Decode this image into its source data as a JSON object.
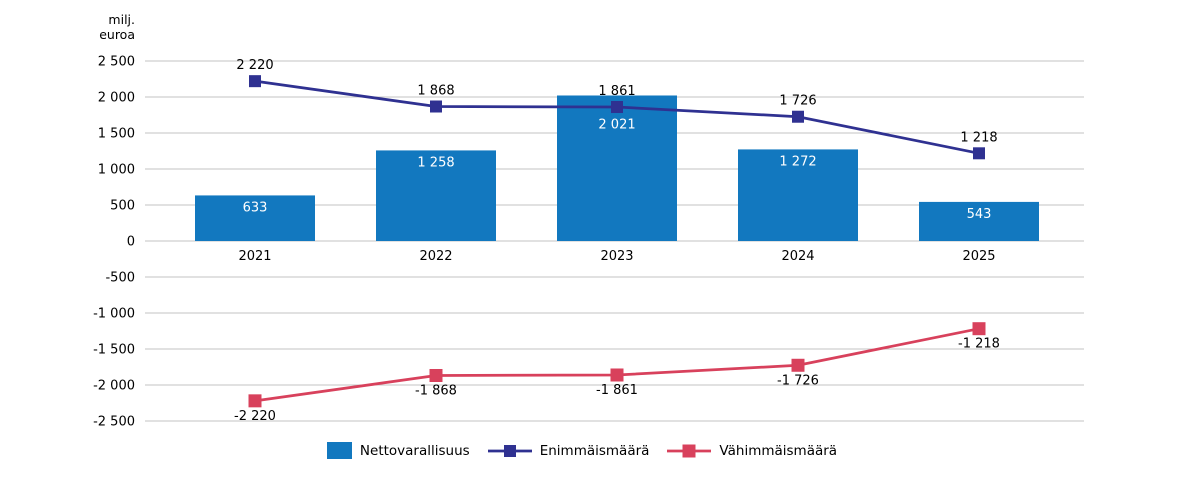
{
  "chart_data": {
    "type": "combo",
    "unit_label_line1": "milj.",
    "unit_label_line2": "euroa",
    "categories": [
      "2021",
      "2022",
      "2023",
      "2024",
      "2025"
    ],
    "series": [
      {
        "key": "nettovarallisuus",
        "name": "Nettovarallisuus",
        "type": "bar",
        "color": "#1278bf",
        "values": [
          633,
          1258,
          2021,
          1272,
          543
        ],
        "labels": [
          "633",
          "1 258",
          "2 021",
          "1 272",
          "543"
        ],
        "label_side": "inside-top",
        "label_dy": [
          16,
          16,
          33,
          16,
          16
        ]
      },
      {
        "key": "enimmaismaara",
        "name": "Enimmäismäärä",
        "type": "line",
        "color": "#2f3191",
        "values": [
          2220,
          1868,
          1861,
          1726,
          1218
        ],
        "labels": [
          "2 220",
          "1 868",
          "1 861",
          "1 726",
          "1 218"
        ],
        "label_side": "above",
        "marker_size": 12
      },
      {
        "key": "vahimmaismaara",
        "name": "Vähimmäismäärä",
        "type": "line",
        "color": "#d8415c",
        "values": [
          -2220,
          -1868,
          -1861,
          -1726,
          -1218
        ],
        "labels": [
          "-2 220",
          "-1 868",
          "-1 861",
          "-1 726",
          "-1 218"
        ],
        "label_side": "below",
        "marker_size": 13
      }
    ],
    "y_axis": {
      "min": -2500,
      "max": 2500,
      "step": 500,
      "tick_labels": [
        "2 500",
        "2 000",
        "1 500",
        "1 000",
        "500",
        "0",
        "-500",
        "-1 000",
        "-1 500",
        "-2 000",
        "-2 500"
      ]
    },
    "grid": true,
    "legend_position": "bottom",
    "colors": {
      "grid": "#c3c3c3",
      "text": "#000000",
      "bar_label": "#ffffff",
      "background": "#ffffff"
    }
  }
}
